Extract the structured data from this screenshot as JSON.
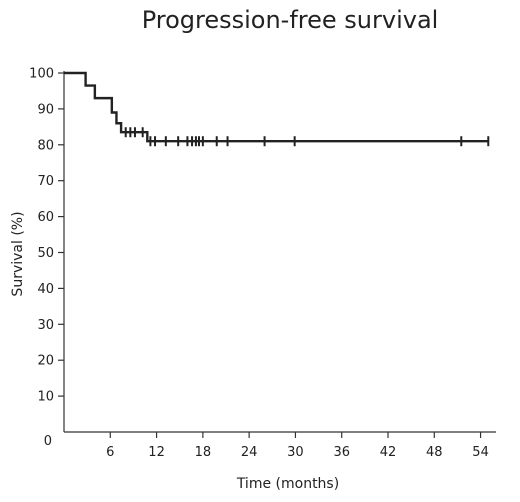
{
  "chart_data": {
    "type": "line",
    "title": "Progression-free survival",
    "xlabel": "Time (months)",
    "ylabel": "Survival (%)",
    "xlim": [
      0,
      56
    ],
    "ylim": [
      0,
      100
    ],
    "x_ticks": [
      6,
      12,
      18,
      24,
      30,
      36,
      42,
      48,
      54
    ],
    "y_ticks": [
      0,
      10,
      20,
      30,
      40,
      50,
      60,
      70,
      80,
      90,
      100
    ],
    "origin_label": "0",
    "grid": false,
    "legend": "none",
    "line_color": "#222222",
    "series": [
      {
        "step_points": [
          {
            "x": 0,
            "y": 100
          },
          {
            "x": 2.8,
            "y": 96.5
          },
          {
            "x": 4.0,
            "y": 93
          },
          {
            "x": 6.2,
            "y": 89
          },
          {
            "x": 6.8,
            "y": 86
          },
          {
            "x": 7.4,
            "y": 83.5
          },
          {
            "x": 10.8,
            "y": 81
          },
          {
            "x": 55,
            "y": 81
          }
        ],
        "censored": [
          {
            "x": 8.0,
            "y": 83.5
          },
          {
            "x": 8.6,
            "y": 83.5
          },
          {
            "x": 9.2,
            "y": 83.5
          },
          {
            "x": 10.2,
            "y": 83.5
          },
          {
            "x": 11.2,
            "y": 81
          },
          {
            "x": 11.8,
            "y": 81
          },
          {
            "x": 13.2,
            "y": 81
          },
          {
            "x": 14.8,
            "y": 81
          },
          {
            "x": 16.0,
            "y": 81
          },
          {
            "x": 16.6,
            "y": 81
          },
          {
            "x": 17.1,
            "y": 81
          },
          {
            "x": 17.5,
            "y": 81
          },
          {
            "x": 18.0,
            "y": 81
          },
          {
            "x": 19.8,
            "y": 81
          },
          {
            "x": 21.2,
            "y": 81
          },
          {
            "x": 26.0,
            "y": 81
          },
          {
            "x": 29.9,
            "y": 81
          },
          {
            "x": 51.5,
            "y": 81
          },
          {
            "x": 55.0,
            "y": 81
          }
        ]
      }
    ]
  }
}
